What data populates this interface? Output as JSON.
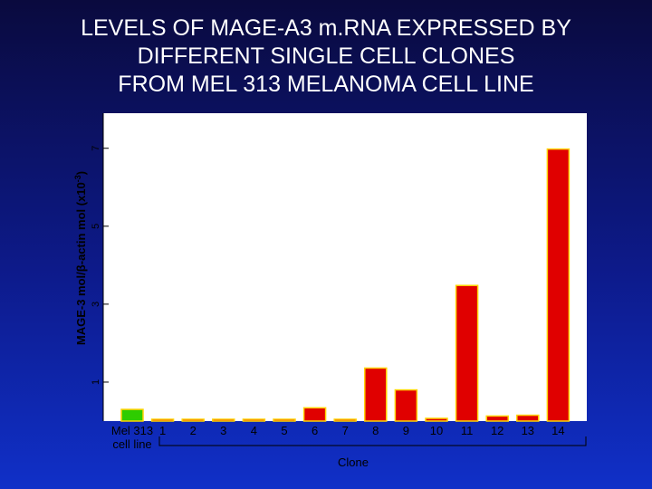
{
  "slide": {
    "title": "LEVELS OF MAGE-A3 m.RNA EXPRESSED BY\nDIFFERENT SINGLE CELL CLONES\nFROM MEL 313 MELANOMA CELL LINE"
  },
  "chart_data": {
    "type": "bar",
    "title": "LEVELS OF MAGE-A3 m.RNA EXPRESSED BY DIFFERENT SINGLE CELL CLONES FROM MEL 313 MELANOMA CELL LINE",
    "ylabel_parts": [
      "MAGE-3 mol/",
      "β",
      "-actin mol (x10",
      "-3",
      ")"
    ],
    "xlabel": "Clone",
    "reference_category": [
      "Mel 313",
      "cell line"
    ],
    "categories": [
      "1",
      "2",
      "3",
      "4",
      "5",
      "6",
      "7",
      "8",
      "9",
      "10",
      "11",
      "12",
      "13",
      "14"
    ],
    "reference_value": 0.3,
    "values": [
      0.03,
      0.03,
      0.03,
      0.03,
      0.03,
      0.34,
      0.03,
      1.36,
      0.8,
      0.07,
      3.48,
      0.13,
      0.15,
      6.98
    ],
    "yticks": [
      1,
      3,
      5,
      7
    ],
    "ylim": [
      0,
      7.9
    ],
    "colors": {
      "reference_bar": "#2ecc00",
      "bars": "#e00000",
      "bar_outline": "#ffd400",
      "plot_background": "#ffffff",
      "title_text": "#ffffff"
    },
    "grid": false,
    "legend": "none"
  }
}
